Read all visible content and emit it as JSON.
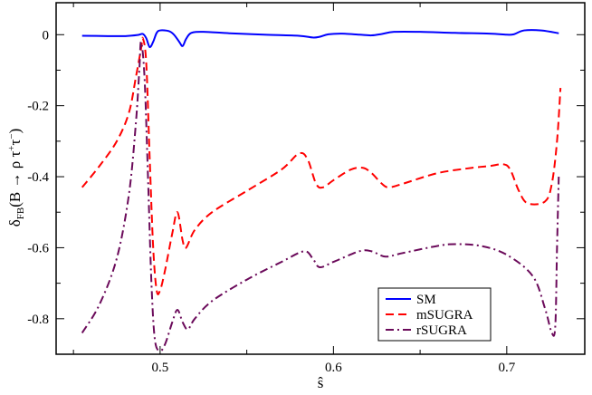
{
  "chart_data": {
    "type": "line",
    "xlabel": "ŝ",
    "ylabel": {
      "base": "δ",
      "sub": "FB",
      "paren_open": "(B → ρ τ",
      "sup1": "+",
      "mid": "τ",
      "sup2": "−",
      "paren_close": ")"
    },
    "xlim": [
      0.44,
      0.745
    ],
    "ylim": [
      -0.9,
      0.09
    ],
    "x_ticks": [
      0.5,
      0.6,
      0.7
    ],
    "x_tick_labels": [
      "0.5",
      "0.6",
      "0.7"
    ],
    "y_ticks": [
      0,
      -0.2,
      -0.4,
      -0.6,
      -0.8
    ],
    "y_tick_labels": [
      "0",
      "-0.2",
      "-0.4",
      "-0.6",
      "-0.8"
    ],
    "legend_position": "bottom-right",
    "series": [
      {
        "name": "SM",
        "color": "#0000ff",
        "style": "solid",
        "points": [
          [
            0.455,
            -0.003
          ],
          [
            0.47,
            -0.004
          ],
          [
            0.48,
            -0.004
          ],
          [
            0.487,
            -0.001
          ],
          [
            0.49,
            0.002
          ],
          [
            0.492,
            -0.01
          ],
          [
            0.494,
            -0.035
          ],
          [
            0.496,
            -0.02
          ],
          [
            0.498,
            0.005
          ],
          [
            0.5,
            0.012
          ],
          [
            0.505,
            0.01
          ],
          [
            0.508,
            0.0
          ],
          [
            0.511,
            -0.02
          ],
          [
            0.513,
            -0.032
          ],
          [
            0.515,
            -0.012
          ],
          [
            0.518,
            0.005
          ],
          [
            0.525,
            0.008
          ],
          [
            0.54,
            0.004
          ],
          [
            0.56,
            0.0
          ],
          [
            0.58,
            -0.003
          ],
          [
            0.588,
            -0.008
          ],
          [
            0.592,
            -0.006
          ],
          [
            0.597,
            0.001
          ],
          [
            0.605,
            0.003
          ],
          [
            0.615,
            0.0
          ],
          [
            0.622,
            -0.002
          ],
          [
            0.628,
            0.002
          ],
          [
            0.635,
            0.008
          ],
          [
            0.65,
            0.008
          ],
          [
            0.67,
            0.005
          ],
          [
            0.69,
            0.003
          ],
          [
            0.7,
            0.0
          ],
          [
            0.704,
            0.001
          ],
          [
            0.71,
            0.012
          ],
          [
            0.72,
            0.012
          ],
          [
            0.73,
            0.004
          ]
        ]
      },
      {
        "name": "mSUGRA",
        "color": "#ff0000",
        "style": "dashed",
        "points": [
          [
            0.455,
            -0.43
          ],
          [
            0.465,
            -0.37
          ],
          [
            0.475,
            -0.3
          ],
          [
            0.482,
            -0.22
          ],
          [
            0.486,
            -0.12
          ],
          [
            0.489,
            -0.04
          ],
          [
            0.49,
            -0.01
          ],
          [
            0.492,
            -0.08
          ],
          [
            0.494,
            -0.35
          ],
          [
            0.496,
            -0.6
          ],
          [
            0.498,
            -0.72
          ],
          [
            0.5,
            -0.72
          ],
          [
            0.503,
            -0.66
          ],
          [
            0.507,
            -0.56
          ],
          [
            0.51,
            -0.5
          ],
          [
            0.513,
            -0.58
          ],
          [
            0.515,
            -0.6
          ],
          [
            0.52,
            -0.55
          ],
          [
            0.53,
            -0.5
          ],
          [
            0.55,
            -0.44
          ],
          [
            0.57,
            -0.38
          ],
          [
            0.58,
            -0.335
          ],
          [
            0.585,
            -0.35
          ],
          [
            0.59,
            -0.42
          ],
          [
            0.594,
            -0.43
          ],
          [
            0.6,
            -0.41
          ],
          [
            0.61,
            -0.38
          ],
          [
            0.617,
            -0.375
          ],
          [
            0.622,
            -0.39
          ],
          [
            0.628,
            -0.42
          ],
          [
            0.632,
            -0.43
          ],
          [
            0.64,
            -0.42
          ],
          [
            0.66,
            -0.39
          ],
          [
            0.68,
            -0.375
          ],
          [
            0.69,
            -0.37
          ],
          [
            0.698,
            -0.365
          ],
          [
            0.702,
            -0.38
          ],
          [
            0.707,
            -0.44
          ],
          [
            0.712,
            -0.475
          ],
          [
            0.722,
            -0.47
          ],
          [
            0.726,
            -0.42
          ],
          [
            0.729,
            -0.3
          ],
          [
            0.731,
            -0.15
          ]
        ]
      },
      {
        "name": "rSUGRA",
        "color": "#6b0a5a",
        "style": "dashdot",
        "points": [
          [
            0.455,
            -0.84
          ],
          [
            0.465,
            -0.76
          ],
          [
            0.475,
            -0.63
          ],
          [
            0.482,
            -0.45
          ],
          [
            0.486,
            -0.25
          ],
          [
            0.488,
            -0.1
          ],
          [
            0.489,
            -0.02
          ],
          [
            0.491,
            -0.12
          ],
          [
            0.493,
            -0.4
          ],
          [
            0.495,
            -0.7
          ],
          [
            0.497,
            -0.86
          ],
          [
            0.5,
            -0.89
          ],
          [
            0.503,
            -0.87
          ],
          [
            0.507,
            -0.81
          ],
          [
            0.51,
            -0.775
          ],
          [
            0.513,
            -0.81
          ],
          [
            0.516,
            -0.83
          ],
          [
            0.52,
            -0.8
          ],
          [
            0.53,
            -0.75
          ],
          [
            0.55,
            -0.69
          ],
          [
            0.57,
            -0.64
          ],
          [
            0.583,
            -0.61
          ],
          [
            0.588,
            -0.63
          ],
          [
            0.592,
            -0.655
          ],
          [
            0.6,
            -0.64
          ],
          [
            0.615,
            -0.61
          ],
          [
            0.622,
            -0.61
          ],
          [
            0.63,
            -0.625
          ],
          [
            0.64,
            -0.615
          ],
          [
            0.66,
            -0.595
          ],
          [
            0.67,
            -0.59
          ],
          [
            0.685,
            -0.595
          ],
          [
            0.7,
            -0.62
          ],
          [
            0.715,
            -0.68
          ],
          [
            0.722,
            -0.77
          ],
          [
            0.726,
            -0.84
          ],
          [
            0.728,
            -0.82
          ],
          [
            0.729,
            -0.6
          ],
          [
            0.73,
            -0.4
          ]
        ]
      }
    ]
  }
}
